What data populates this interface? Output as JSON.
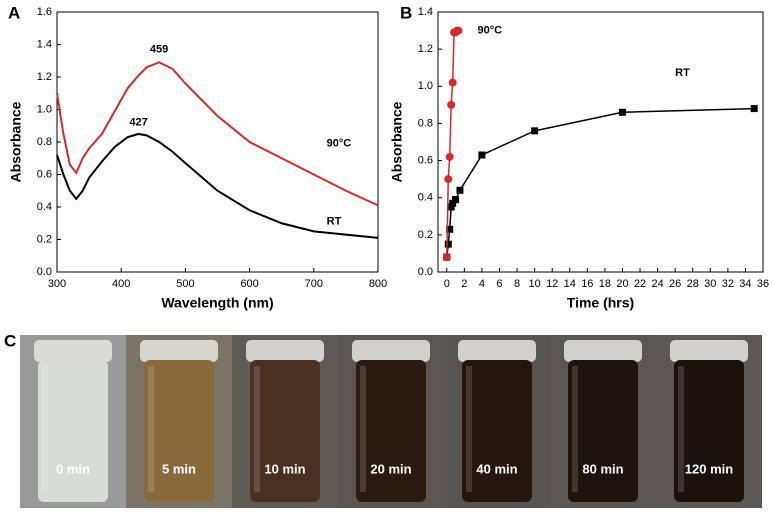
{
  "chart_data": [
    {
      "type": "line",
      "panel": "A",
      "xlabel": "Wavelength (nm)",
      "ylabel": "Absorbance",
      "x": [
        300,
        310,
        320,
        330,
        340,
        350,
        370,
        390,
        410,
        427,
        440,
        459,
        480,
        500,
        550,
        600,
        650,
        700,
        750,
        800
      ],
      "series": [
        {
          "name": "RT",
          "color": "#000000",
          "values": [
            0.72,
            0.6,
            0.5,
            0.45,
            0.5,
            0.58,
            0.68,
            0.77,
            0.83,
            0.85,
            0.84,
            0.8,
            0.74,
            0.67,
            0.5,
            0.38,
            0.3,
            0.25,
            0.23,
            0.21
          ]
        },
        {
          "name": "90°C",
          "color": "#d42a2a",
          "values": [
            1.1,
            0.85,
            0.66,
            0.61,
            0.7,
            0.76,
            0.85,
            0.99,
            1.13,
            1.21,
            1.26,
            1.29,
            1.25,
            1.16,
            0.96,
            0.8,
            0.7,
            0.6,
            0.5,
            0.41
          ]
        }
      ],
      "annotations": [
        "427",
        "459"
      ],
      "xlim": [
        300,
        800
      ],
      "xticks": [
        300,
        400,
        500,
        600,
        700,
        800
      ],
      "ylim": [
        0,
        1.6
      ],
      "yticks": [
        {
          "value": 0,
          "label": "0.0"
        },
        0.2,
        0.4,
        0.6,
        0.8,
        {
          "value": 1,
          "label": "1.0"
        },
        1.2,
        1.4,
        1.6
      ]
    },
    {
      "type": "scatter-line",
      "panel": "B",
      "xlabel": "Time (hrs)",
      "ylabel": "Absorbance",
      "series": [
        {
          "name": "RT",
          "color": "#000000",
          "x": [
            0,
            0.17,
            0.33,
            0.5,
            0.67,
            1,
            1.5,
            4,
            10,
            20,
            35
          ],
          "values": [
            0.08,
            0.15,
            0.23,
            0.35,
            0.37,
            0.39,
            0.44,
            0.63,
            0.76,
            0.86,
            0.88
          ]
        },
        {
          "name": "90°C",
          "color": "#d42a2a",
          "x": [
            0,
            0.17,
            0.33,
            0.5,
            0.67,
            0.83,
            1,
            1.17,
            1.33
          ],
          "values": [
            0.08,
            0.5,
            0.62,
            0.9,
            1.02,
            1.29,
            1.29,
            1.3,
            1.3
          ]
        }
      ],
      "xlim": [
        -1,
        36
      ],
      "xticks": [
        0,
        2,
        4,
        6,
        8,
        10,
        12,
        14,
        16,
        18,
        20,
        22,
        24,
        26,
        28,
        30,
        32,
        34,
        36
      ],
      "ylim": [
        0,
        1.4
      ],
      "yticks": [
        {
          "value": 0,
          "label": "0.0"
        },
        0.2,
        0.4,
        0.6,
        0.8,
        {
          "value": 1,
          "label": "1.0"
        },
        1.2,
        1.4
      ]
    }
  ],
  "photo": {
    "panel": "C",
    "captions": [
      "0 min",
      "5 min",
      "10 min",
      "20 min",
      "40 min",
      "80 min",
      "120 min"
    ]
  }
}
